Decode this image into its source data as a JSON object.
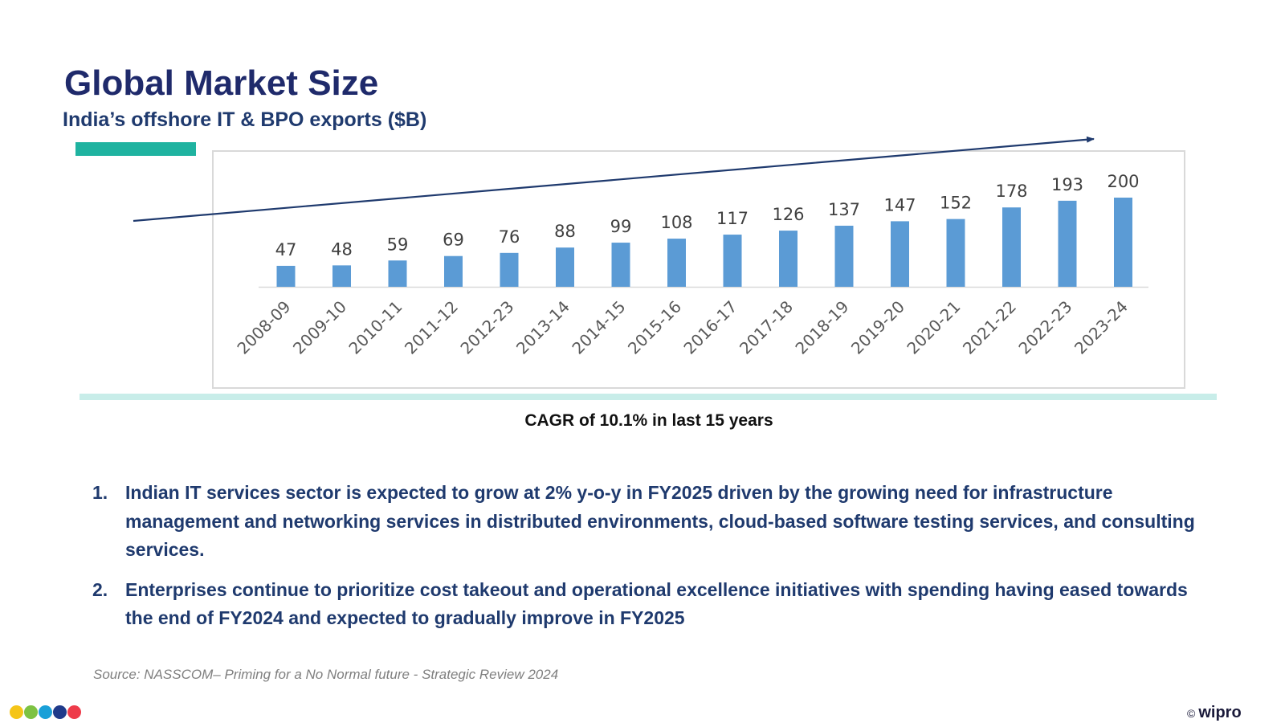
{
  "header": {
    "title": "Global Market Size",
    "subtitle": "India’s offshore IT & BPO exports ($B)"
  },
  "chart_data": {
    "type": "bar",
    "title": "India’s offshore IT & BPO exports ($B)",
    "categories": [
      "2008-09",
      "2009-10",
      "2010-11",
      "2011-12",
      "2012-23",
      "2013-14",
      "2014-15",
      "2015-16",
      "2016-17",
      "2017-18",
      "2018-19",
      "2019-20",
      "2020-21",
      "2021-22",
      "2022-23",
      "2023-24"
    ],
    "values": [
      47,
      48,
      59,
      69,
      76,
      88,
      99,
      108,
      117,
      126,
      137,
      147,
      152,
      178,
      193,
      200
    ],
    "xlabel": "",
    "ylabel": "",
    "ylim": [
      0,
      200
    ],
    "grid": false,
    "data_labels": true,
    "bar_color": "#5b9bd5",
    "trend_arrow": true,
    "annotation": "CAGR of 10.1% in last 15 years"
  },
  "annotation": {
    "cagr": "CAGR of 10.1% in last 15 years"
  },
  "bullets": [
    {
      "number": "1.",
      "text": "Indian IT services sector is expected to grow at 2% y-o-y in FY2025 driven by the growing need for infrastructure management and networking services in distributed environments, cloud-based software testing services, and consulting services."
    },
    {
      "number": "2.",
      "text": "Enterprises continue to prioritize cost takeout and operational excellence initiatives with spending having eased towards the end of FY2024 and expected to gradually improve in FY2025"
    }
  ],
  "footer": {
    "source": "Source: NASSCOM– Priming for a No Normal future - Strategic Review 2024",
    "copyright_symbol": "©",
    "brand": "wipro",
    "dot_colors": [
      "#f5c518",
      "#7dc242",
      "#1aa0d8",
      "#1f3a8a",
      "#ee3b4a"
    ]
  },
  "colors": {
    "title": "#1f2a6b",
    "subtitle": "#1f3a6e",
    "accent": "#1fb3a0",
    "bar": "#5b9bd5",
    "arrow": "#1f3a6e"
  }
}
